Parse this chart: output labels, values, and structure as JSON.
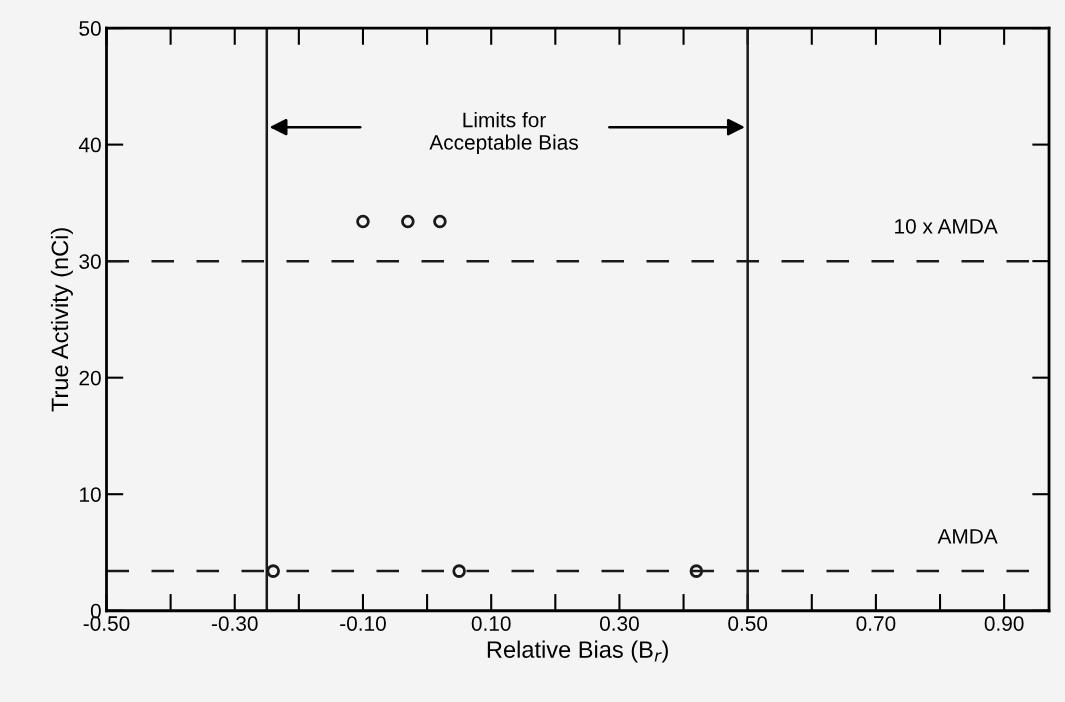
{
  "chart_data": {
    "type": "scatter",
    "xlabel": "Relative Bias (B$_{r}$)",
    "ylabel": "True Activity (nCi)",
    "x": [
      -0.24,
      0.05,
      0.42,
      -0.1,
      -0.03,
      0.02
    ],
    "series": [
      {
        "color": "#1a1a1a",
        "values": [
          3.4,
          3.4,
          3.4,
          33.4,
          33.4,
          33.4
        ]
      }
    ],
    "marker": "circle",
    "legend": false,
    "grid": false,
    "xlim": [
      -0.5,
      0.97
    ],
    "ylim": [
      0,
      50
    ],
    "xticks": [
      {
        "value": -0.5,
        "label": "-0.50"
      },
      {
        "value": -0.3,
        "label": "-0.30"
      },
      {
        "value": -0.1,
        "label": "-0.10"
      },
      {
        "value": 0.1,
        "label": "0.10"
      },
      {
        "value": 0.3,
        "label": "0.30"
      },
      {
        "value": 0.5,
        "label": "0.50"
      },
      {
        "value": 0.7,
        "label": "0.70"
      },
      {
        "value": 0.9,
        "label": "0.90"
      }
    ],
    "yticks": [
      0,
      10,
      20,
      30,
      40,
      50
    ],
    "ref_lines": [
      {
        "axis": "x",
        "value": -0.25,
        "color": "#1a1a1a",
        "line_style": "solid"
      },
      {
        "axis": "x",
        "value": 0.5,
        "color": "#1a1a1a",
        "line_style": "solid"
      },
      {
        "axis": "y",
        "value": 30,
        "label": "10 x AMDA",
        "color": "#1a1a1a",
        "line_style": "dashed"
      },
      {
        "axis": "y",
        "value": 3.4,
        "label": "AMDA",
        "color": "#1a1a1a",
        "line_style": "dashed"
      }
    ],
    "annotations": [
      "Limits for\nAcceptable Bias"
    ]
  }
}
